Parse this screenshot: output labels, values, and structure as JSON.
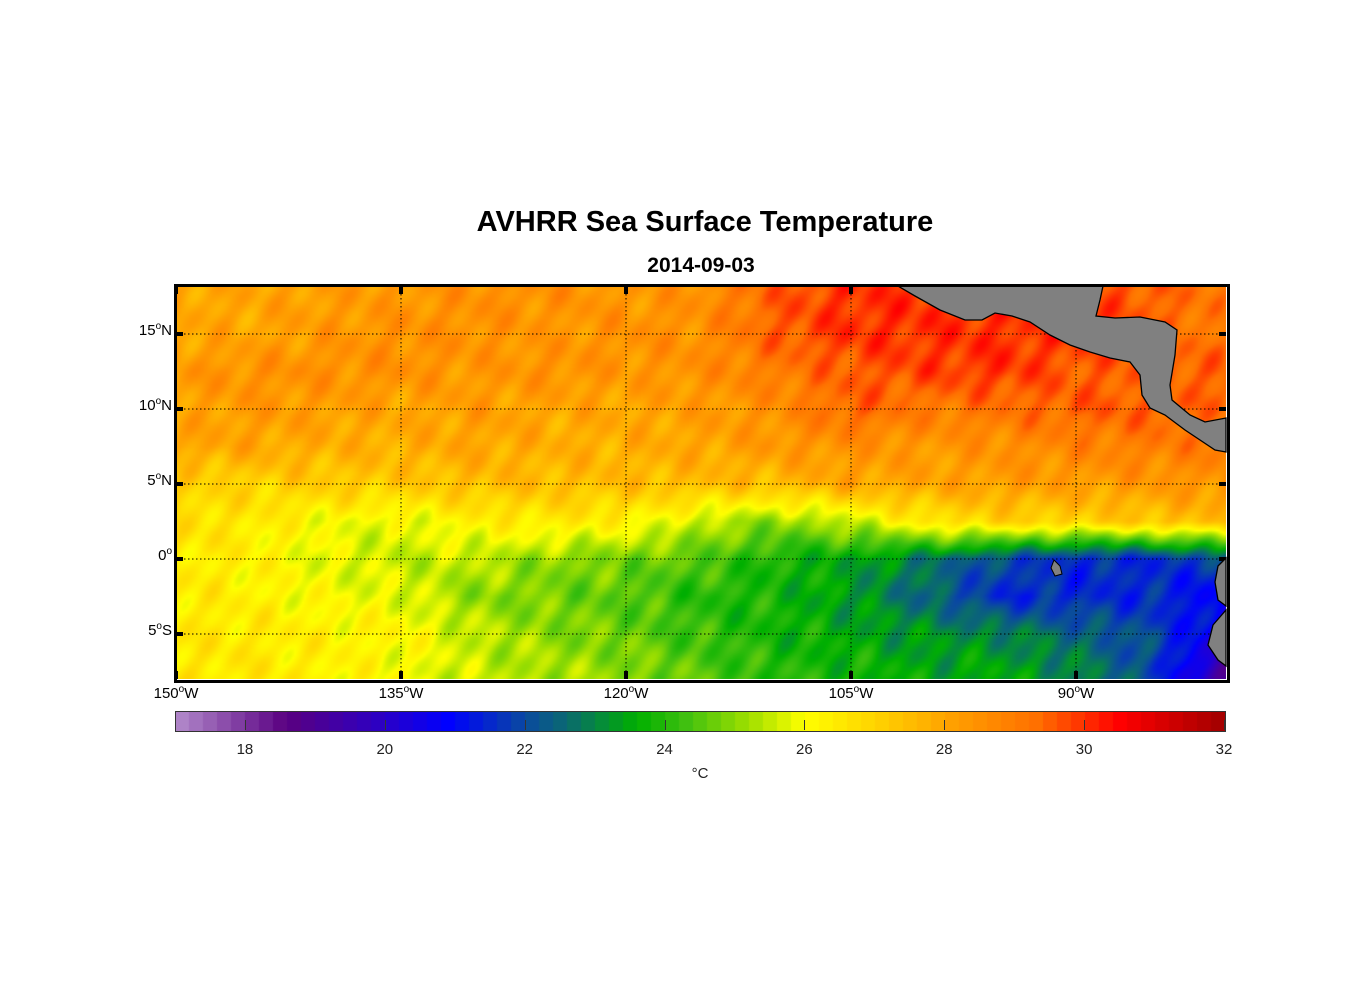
{
  "chart_data": {
    "type": "heatmap",
    "title": "AVHRR Sea Surface Temperature",
    "subtitle": "2014-09-03",
    "variable": "Sea surface temperature",
    "lon_range": [
      -150,
      -80
    ],
    "lat_range": [
      -8,
      18.2
    ],
    "grid": true,
    "x_ticks": [
      {
        "value": -150,
        "label": "150",
        "suffix": "W"
      },
      {
        "value": -135,
        "label": "135",
        "suffix": "W"
      },
      {
        "value": -120,
        "label": "120",
        "suffix": "W"
      },
      {
        "value": -105,
        "label": "105",
        "suffix": "W"
      },
      {
        "value": -90,
        "label": "90",
        "suffix": "W"
      }
    ],
    "y_ticks": [
      {
        "value": 15,
        "label": "15",
        "suffix": "N"
      },
      {
        "value": 10,
        "label": "10",
        "suffix": "N"
      },
      {
        "value": 5,
        "label": "5",
        "suffix": "N"
      },
      {
        "value": 0,
        "label": "0",
        "suffix": ""
      },
      {
        "value": -5,
        "label": "5",
        "suffix": "S"
      }
    ],
    "degree_symbol": "o",
    "grid_lons": [
      -150,
      -145,
      -140,
      -135,
      -130,
      -125,
      -120,
      -115,
      -110,
      -105,
      -100,
      -95,
      -90,
      -85,
      -80
    ],
    "grid_lats": [
      17.5,
      15,
      12.5,
      10,
      7.5,
      5,
      2.5,
      0,
      -2.5,
      -5,
      -7.5
    ],
    "values": [
      [
        28,
        28,
        28.2,
        28.3,
        28.5,
        28.5,
        28.3,
        28.5,
        29.5,
        30,
        30,
        30,
        29.8,
        29.5,
        29
      ],
      [
        28,
        28,
        28.3,
        28.5,
        28.5,
        28.3,
        28.5,
        28.5,
        29.5,
        30,
        30,
        30,
        30,
        29.5,
        29
      ],
      [
        28.3,
        28.5,
        28.5,
        28.5,
        28.3,
        28.5,
        28.3,
        28.5,
        29,
        29.5,
        29.8,
        30,
        29.5,
        29.5,
        29.5
      ],
      [
        28,
        28.3,
        28.2,
        28,
        28.2,
        28,
        28,
        28.2,
        28.5,
        29.5,
        29,
        29.2,
        29.5,
        29.5,
        29.3
      ],
      [
        28,
        28,
        27.8,
        27.8,
        28,
        27.8,
        27.8,
        28,
        28.3,
        28.5,
        28.3,
        28.5,
        28.8,
        29,
        29
      ],
      [
        27,
        27,
        27.2,
        27.2,
        27.5,
        27.5,
        27.5,
        27.5,
        27.5,
        28,
        28,
        28.2,
        28.2,
        28.3,
        28.5
      ],
      [
        26.8,
        26.5,
        26,
        25.8,
        26.3,
        26.5,
        26.3,
        25.5,
        25,
        25.5,
        26.5,
        27,
        27,
        27.3,
        27.5
      ],
      [
        26.5,
        26.3,
        25.8,
        25.5,
        25.5,
        25,
        24.8,
        24.5,
        23.8,
        23.5,
        22.8,
        22,
        21.5,
        21.5,
        22
      ],
      [
        26.5,
        26.3,
        26,
        25.8,
        25,
        24.8,
        24.5,
        24,
        23.8,
        23.3,
        22.5,
        21.5,
        21.5,
        21.5,
        20.8
      ],
      [
        26.5,
        26.5,
        26.3,
        26.2,
        25.5,
        25,
        24.7,
        24.2,
        23.8,
        23.5,
        23.2,
        23,
        22.5,
        22,
        20.5
      ],
      [
        26.5,
        26.5,
        26.3,
        26,
        25.5,
        25.3,
        25,
        24.5,
        24,
        23.8,
        23.5,
        23.5,
        23,
        22,
        19
      ]
    ],
    "colorbar": {
      "range": [
        17,
        32
      ],
      "ticks": [
        "18",
        "20",
        "22",
        "24",
        "26",
        "28",
        "30",
        "32"
      ],
      "tick_values": [
        18,
        20,
        22,
        24,
        26,
        28,
        30,
        32
      ],
      "units": "°C",
      "stops": [
        [
          17,
          "#b48ccc"
        ],
        [
          18.3,
          "#6a1a90"
        ],
        [
          18.6,
          "#5a0080"
        ],
        [
          20,
          "#2a00c8"
        ],
        [
          20.9,
          "#0000ff"
        ],
        [
          22,
          "#0a4aa0"
        ],
        [
          22.6,
          "#0a6a70"
        ],
        [
          23.6,
          "#00b000"
        ],
        [
          24.3,
          "#40c010"
        ],
        [
          25.2,
          "#a0e000"
        ],
        [
          26,
          "#ffff00"
        ],
        [
          27,
          "#ffd400"
        ],
        [
          28,
          "#ffa500"
        ],
        [
          29.3,
          "#ff7000"
        ],
        [
          30.5,
          "#ff0000"
        ],
        [
          32,
          "#a00000"
        ]
      ]
    },
    "land_color": "#808080"
  }
}
